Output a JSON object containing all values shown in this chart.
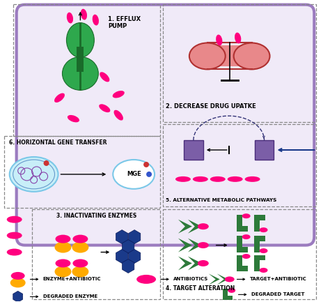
{
  "bg_color": "#ffffff",
  "cell_fill": "#f0eaf8",
  "cell_border": "#9b7bbf",
  "antibiotic_color": "#ff007f",
  "enzyme_color": "#ffaa00",
  "degraded_enzyme_color": "#1a3a8a",
  "target_green": "#2d7a3a",
  "pump_green": "#2ea84d",
  "pump_dark": "#1a6b2a",
  "receptor_fill": "#e8888a",
  "receptor_border": "#b03030",
  "pathway_purple": "#7b5ea7",
  "mge_border": "#7bc8e8",
  "mge_fill": "#ffffff",
  "bact_fill": "#c8eef8",
  "bact_border": "#7bc8e8",
  "arrow_blue": "#1a3a8a",
  "labels": {
    "1": "1. EFFLUX\nPUMP",
    "2": "2. DECREASE DRUG UPATKE",
    "3": "3. INACTIVATING ENZYMES",
    "4": "4. TARGET ALTERATION",
    "5": "5. ALTERNATIVE METABOLIC PATHWAYS",
    "6": "6. HORIZONTAL GENE TRANSFER"
  },
  "legend": {
    "enzyme_antibiotic": "ENZYME+ANTIBIOTIC",
    "degraded_enzyme": "DEGRADED ENZYME",
    "antibiotics": "ANTIBIOTICS",
    "target_antibiotic": "TARGET+ANTIBIOTIC",
    "degraded_target": "DEGRADED TARGET"
  }
}
